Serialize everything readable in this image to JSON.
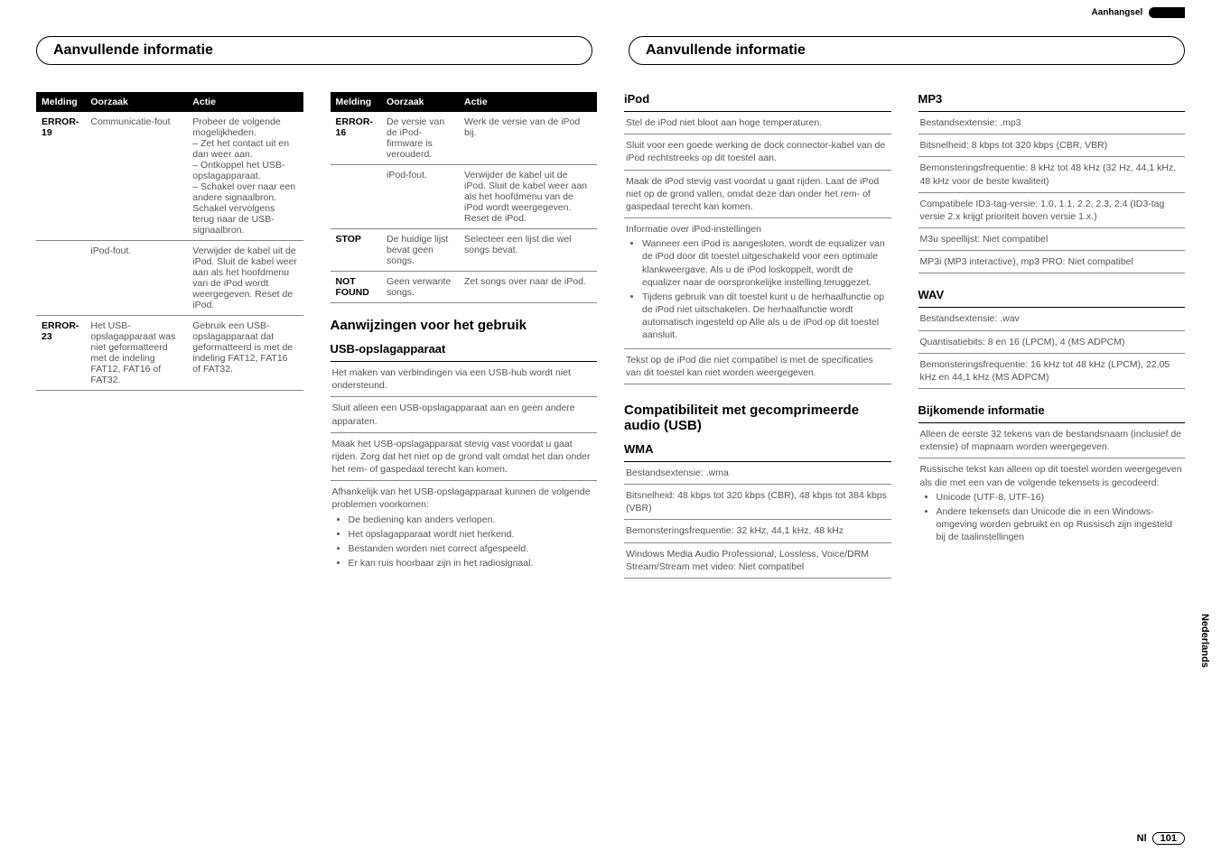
{
  "appendix_label": "Aanhangsel",
  "header_left": "Aanvullende informatie",
  "header_right": "Aanvullende informatie",
  "table_headers": {
    "c1": "Melding",
    "c2": "Oorzaak",
    "c3": "Actie"
  },
  "table1": [
    {
      "code": "ERROR-19",
      "cause": "Communicatie-fout",
      "action": "Probeer de volgende mogelijkheden.\n– Zet het contact uit en dan weer aan.\n– Ontkoppel het USB-opslagapparaat.\n– Schakel over naar een andere signaalbron. Schakel vervolgens terug naar de USB-signaalbron."
    },
    {
      "code": "",
      "cause": "iPod-fout.",
      "action": "Verwijder de kabel uit de iPod. Sluit de kabel weer aan als het hoofdmenu van de iPod wordt weergegeven. Reset de iPod."
    },
    {
      "code": "ERROR-23",
      "cause": "Het USB-opslagapparaat was niet geformatteerd met de indeling FAT12, FAT16 of FAT32.",
      "action": "Gebruik een USB-opslagapparaat dat geformatteerd is met de indeling FAT12, FAT16 of FAT32."
    }
  ],
  "table2": [
    {
      "code": "ERROR-16",
      "cause": "De versie van de iPod-firmware is verouderd.",
      "action": "Werk de versie van de iPod bij."
    },
    {
      "code": "",
      "cause": "iPod-fout.",
      "action": "Verwijder de kabel uit de iPod. Sluit de kabel weer aan als het hoofdmenu van de iPod wordt weergegeven. Reset de iPod."
    },
    {
      "code": "STOP",
      "cause": "De huidige lijst bevat geen songs.",
      "action": "Selecteer een lijst die wel songs bevat."
    },
    {
      "code": "NOT FOUND",
      "cause": "Geen verwante songs.",
      "action": "Zet songs over naar de iPod."
    }
  ],
  "usage_title": "Aanwijzingen voor het gebruik",
  "usb_title": "USB-opslagapparaat",
  "usb_items": [
    "Het maken van verbindingen via een USB-hub wordt niet ondersteund.",
    "Sluit alleen een USB-opslagapparaat aan en geen andere apparaten.",
    "Maak het USB-opslagapparaat stevig vast voordat u gaat rijden. Zorg dat het niet op de grond valt omdat het dan onder het rem- of gaspedaal terecht kan komen."
  ],
  "usb_problems_intro": "Afhankelijk van het USB-opslagapparaat kunnen de volgende problemen voorkomen:",
  "usb_problems": [
    "De bediening kan anders verlopen.",
    "Het opslagapparaat wordt niet herkend.",
    "Bestanden worden niet correct afgespeeld.",
    "Er kan ruis hoorbaar zijn in het radiosignaal."
  ],
  "ipod_title": "iPod",
  "ipod_items": [
    "Stel de iPod niet bloot aan hoge temperaturen.",
    "Sluit voor een goede werking de dock connector-kabel van de iPod rechtstreeks op dit toestel aan.",
    "Maak de iPod stevig vast voordat u gaat rijden. Laat de iPod niet op de grond vallen, omdat deze dan onder het rem- of gaspedaal terecht kan komen."
  ],
  "ipod_settings_label": "Informatie over iPod-instellingen",
  "ipod_settings": [
    "Wanneer een iPod is aangesloten, wordt de equalizer van de iPod door dit toestel uitgeschakeld voor een optimale klankweergave. Als u de iPod loskoppelt, wordt de equalizer naar de oorspronkelijke instelling teruggezet.",
    "Tijdens gebruik van dit toestel kunt u de herhaalfunctie op de iPod niet uitschakelen. De herhaalfunctie wordt automatisch ingesteld op Alle als u de iPod op dit toestel aansluit."
  ],
  "ipod_text_note": "Tekst op de iPod die niet compatibel is met de specificaties van dit toestel kan niet worden weergegeven.",
  "compat_title": "Compatibiliteit met gecomprimeerde audio (USB)",
  "wma_title": "WMA",
  "wma_items": [
    "Bestandsextensie: .wma",
    "Bitsnelheid: 48 kbps tot 320 kbps (CBR), 48 kbps tot 384 kbps (VBR)",
    "Bemonsteringsfrequentie: 32 kHz, 44,1 kHz, 48 kHz",
    "Windows Media Audio Professional, Lossless, Voice/DRM Stream/Stream met video: Niet compatibel"
  ],
  "mp3_title": "MP3",
  "mp3_items": [
    "Bestandsextensie: .mp3",
    "Bitsnelheid: 8 kbps tot 320 kbps (CBR, VBR)",
    "Bemonsteringsfrequentie: 8 kHz tot 48 kHz (32 Hz, 44,1 kHz, 48 kHz voor de beste kwaliteit)",
    "Compatibele ID3-tag-versie: 1.0, 1.1, 2.2, 2.3, 2.4 (ID3-tag versie 2.x krijgt prioriteit boven versie 1.x.)",
    "M3u speellijst: Niet compatibel",
    "MP3i (MP3 interactive), mp3 PRO: Niet compatibel"
  ],
  "wav_title": "WAV",
  "wav_items": [
    "Bestandsextensie: .wav",
    "Quantisatiebits: 8 en 16 (LPCM), 4 (MS ADPCM)",
    "Bemonsteringsfrequentie: 16 kHz tot 48 kHz (LPCM), 22,05 kHz en 44,1 kHz (MS ADPCM)"
  ],
  "addl_title": "Bijkomende informatie",
  "addl_items": [
    "Alleen de eerste 32 tekens van de bestandsnaam (inclusief de extensie) of mapnaam worden weergegeven."
  ],
  "addl_russian_intro": "Russische tekst kan alleen op dit toestel worden weergegeven als die met een van de volgende tekensets is gecodeerd:",
  "addl_russian": [
    "Unicode (UTF-8, UTF-16)",
    "Andere tekensets dan Unicode die in een Windows-omgeving worden gebruikt en op Russisch zijn ingesteld bij de taalinstellingen"
  ],
  "side_tab": "Nederlands",
  "footer_lang": "Nl",
  "footer_page": "101"
}
